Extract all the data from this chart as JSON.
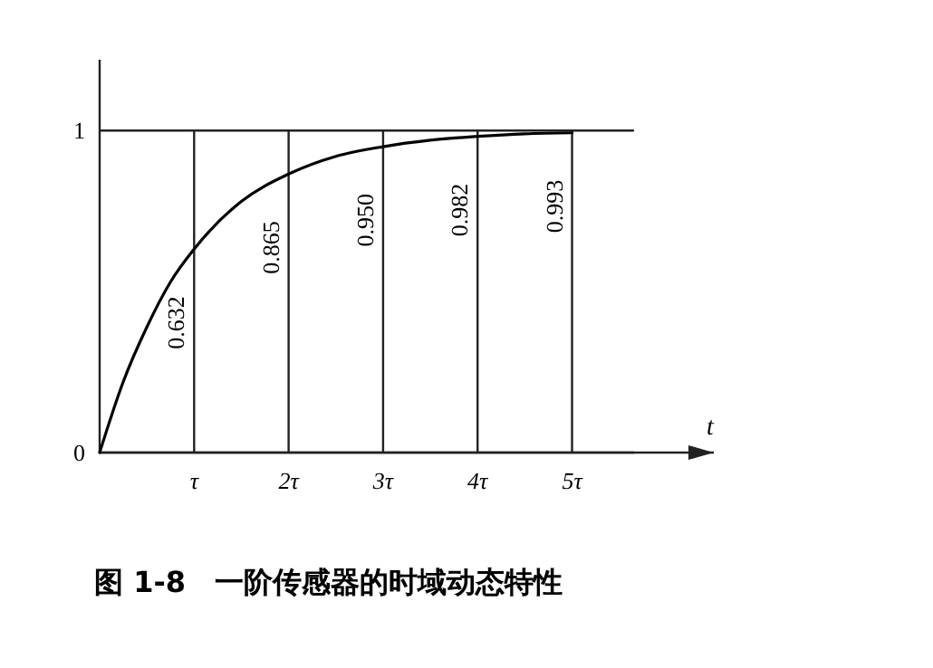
{
  "chart_data": {
    "type": "line",
    "title": "图 1-8　一阶传感器的时域动态特性",
    "xlabel": "t",
    "x": [
      0,
      0.25,
      0.5,
      0.75,
      1,
      1.5,
      2,
      2.5,
      3,
      3.5,
      4,
      4.5,
      5
    ],
    "series": [
      {
        "color": "#000000",
        "values": [
          0,
          0.22,
          0.39,
          0.53,
          0.632,
          0.78,
          0.865,
          0.92,
          0.95,
          0.97,
          0.982,
          0.99,
          0.993
        ]
      }
    ],
    "xlim": [
      0,
      6.5
    ],
    "ylim": [
      0,
      1.22
    ],
    "xticks": [
      {
        "value": 1,
        "label": "τ"
      },
      {
        "value": 2,
        "label": "2τ"
      },
      {
        "value": 3,
        "label": "3τ"
      },
      {
        "value": 4,
        "label": "4τ"
      },
      {
        "value": 5,
        "label": "5τ"
      }
    ],
    "yticks": [
      0,
      1
    ],
    "grid": true,
    "marker": "none",
    "line_style": "solid",
    "annotations": [
      {
        "text": "0.632",
        "x": 1,
        "y": 0.632
      },
      {
        "text": "0.865",
        "x": 2,
        "y": 0.865
      },
      {
        "text": "0.950",
        "x": 3,
        "y": 0.95
      },
      {
        "text": "0.982",
        "x": 4,
        "y": 0.982
      },
      {
        "text": "0.993",
        "x": 5,
        "y": 0.993
      }
    ]
  }
}
